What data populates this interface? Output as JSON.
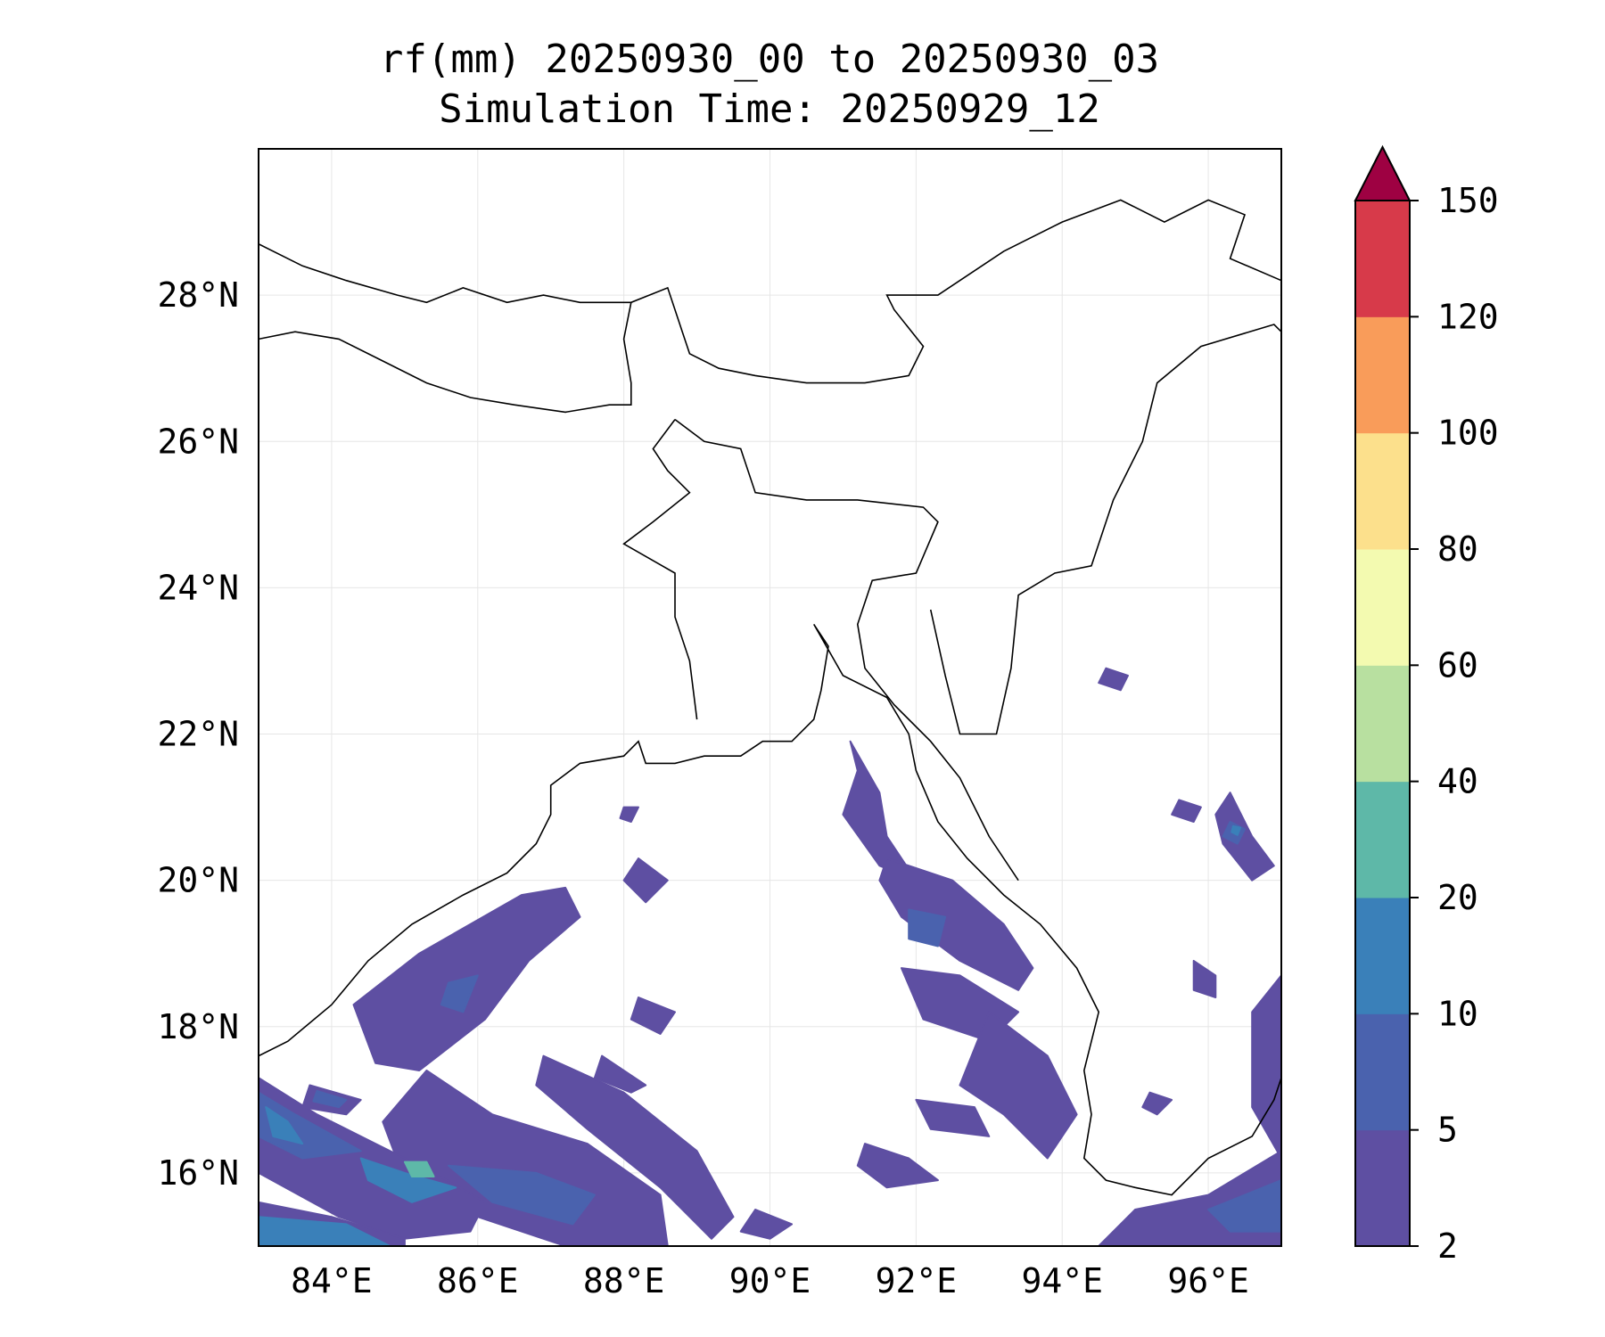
{
  "chart_data": {
    "type": "heatmap",
    "title_line1": "rf(mm) 20250930_00 to 20250930_03",
    "title_line2": "Simulation Time: 20250929_12",
    "xlabel": "",
    "ylabel": "",
    "xlim": [
      83,
      97
    ],
    "ylim": [
      15,
      30
    ],
    "grid": true,
    "x_ticks": [
      84,
      86,
      88,
      90,
      92,
      94,
      96
    ],
    "y_ticks": [
      16,
      18,
      20,
      22,
      24,
      26,
      28
    ],
    "x_tick_labels": [
      "84°E",
      "86°E",
      "88°E",
      "90°E",
      "92°E",
      "94°E",
      "96°E"
    ],
    "y_tick_labels": [
      "16°N",
      "18°N",
      "20°N",
      "22°N",
      "24°N",
      "26°N",
      "28°N"
    ],
    "colorbar": {
      "levels": [
        2,
        5,
        10,
        20,
        40,
        60,
        80,
        100,
        120,
        150
      ],
      "level_labels": [
        "2",
        "5",
        "10",
        "20",
        "40",
        "60",
        "80",
        "100",
        "120",
        "150"
      ],
      "colors": [
        "#5e4fa2",
        "#4a62ae",
        "#3a80b9",
        "#5eb8a8",
        "#b8e0a0",
        "#f3fab0",
        "#fce08c",
        "#f99c5a",
        "#d73a4a"
      ],
      "extend_color": "#9e0142",
      "extend": "max"
    },
    "rain_areas": [
      {
        "level": 1,
        "points": [
          [
            91.1,
            21.9
          ],
          [
            91.5,
            21.2
          ],
          [
            91.6,
            20.6
          ],
          [
            92.0,
            20.0
          ],
          [
            91.5,
            20.2
          ],
          [
            91.0,
            20.9
          ],
          [
            91.2,
            21.5
          ]
        ]
      },
      {
        "level": 1,
        "points": [
          [
            91.6,
            20.3
          ],
          [
            92.5,
            20.0
          ],
          [
            93.2,
            19.4
          ],
          [
            93.6,
            18.8
          ],
          [
            93.4,
            18.5
          ],
          [
            92.6,
            18.9
          ],
          [
            91.8,
            19.5
          ],
          [
            91.5,
            20.0
          ]
        ]
      },
      {
        "level": 1,
        "points": [
          [
            91.8,
            18.8
          ],
          [
            92.6,
            18.7
          ],
          [
            93.4,
            18.2
          ],
          [
            93.0,
            17.8
          ],
          [
            92.1,
            18.1
          ]
        ]
      },
      {
        "level": 2,
        "points": [
          [
            91.9,
            19.6
          ],
          [
            92.4,
            19.5
          ],
          [
            92.3,
            19.1
          ],
          [
            91.9,
            19.2
          ]
        ]
      },
      {
        "level": 1,
        "points": [
          [
            93.0,
            18.2
          ],
          [
            93.8,
            17.6
          ],
          [
            94.2,
            16.8
          ],
          [
            93.8,
            16.2
          ],
          [
            93.2,
            16.8
          ],
          [
            92.6,
            17.2
          ]
        ]
      },
      {
        "level": 1,
        "points": [
          [
            92.0,
            17.0
          ],
          [
            92.8,
            16.9
          ],
          [
            93.0,
            16.5
          ],
          [
            92.2,
            16.6
          ]
        ]
      },
      {
        "level": 1,
        "points": [
          [
            91.3,
            16.4
          ],
          [
            91.9,
            16.2
          ],
          [
            92.3,
            15.9
          ],
          [
            91.6,
            15.8
          ],
          [
            91.2,
            16.1
          ]
        ]
      },
      {
        "level": 1,
        "points": [
          [
            96.3,
            21.2
          ],
          [
            96.6,
            20.6
          ],
          [
            96.9,
            20.2
          ],
          [
            96.6,
            20.0
          ],
          [
            96.2,
            20.5
          ],
          [
            96.1,
            20.9
          ]
        ]
      },
      {
        "level": 2,
        "points": [
          [
            96.3,
            20.8
          ],
          [
            96.5,
            20.7
          ],
          [
            96.4,
            20.5
          ],
          [
            96.2,
            20.6
          ]
        ]
      },
      {
        "level": 3,
        "points": [
          [
            96.34,
            20.74
          ],
          [
            96.44,
            20.72
          ],
          [
            96.4,
            20.62
          ],
          [
            96.32,
            20.66
          ]
        ]
      },
      {
        "level": 1,
        "points": [
          [
            95.6,
            21.1
          ],
          [
            95.9,
            21.0
          ],
          [
            95.8,
            20.8
          ],
          [
            95.5,
            20.9
          ]
        ]
      },
      {
        "level": 1,
        "points": [
          [
            94.6,
            22.9
          ],
          [
            94.9,
            22.8
          ],
          [
            94.8,
            22.6
          ],
          [
            94.5,
            22.7
          ]
        ]
      },
      {
        "level": 1,
        "points": [
          [
            96.6,
            18.2
          ],
          [
            97.0,
            18.7
          ],
          [
            97.0,
            16.2
          ],
          [
            96.6,
            16.9
          ]
        ]
      },
      {
        "level": 1,
        "points": [
          [
            95.8,
            18.9
          ],
          [
            96.1,
            18.7
          ],
          [
            96.1,
            18.4
          ],
          [
            95.8,
            18.5
          ]
        ]
      },
      {
        "level": 1,
        "points": [
          [
            95.2,
            17.1
          ],
          [
            95.5,
            17.0
          ],
          [
            95.3,
            16.8
          ],
          [
            95.1,
            16.9
          ]
        ]
      },
      {
        "level": 1,
        "points": [
          [
            95.0,
            15.5
          ],
          [
            96.0,
            15.7
          ],
          [
            97.0,
            16.3
          ],
          [
            97.0,
            15.0
          ],
          [
            94.5,
            15.0
          ]
        ]
      },
      {
        "level": 2,
        "points": [
          [
            96.0,
            15.5
          ],
          [
            97.0,
            15.9
          ],
          [
            97.0,
            15.2
          ],
          [
            96.3,
            15.2
          ]
        ]
      },
      {
        "level": 1,
        "points": [
          [
            84.3,
            18.3
          ],
          [
            85.2,
            19.0
          ],
          [
            86.6,
            19.8
          ],
          [
            87.2,
            19.9
          ],
          [
            87.4,
            19.5
          ],
          [
            86.7,
            18.9
          ],
          [
            86.1,
            18.1
          ],
          [
            85.2,
            17.4
          ],
          [
            84.6,
            17.5
          ]
        ]
      },
      {
        "level": 2,
        "points": [
          [
            85.6,
            18.6
          ],
          [
            86.0,
            18.7
          ],
          [
            85.8,
            18.2
          ],
          [
            85.5,
            18.3
          ]
        ]
      },
      {
        "level": 1,
        "points": [
          [
            85.3,
            17.4
          ],
          [
            86.2,
            16.8
          ],
          [
            87.5,
            16.4
          ],
          [
            88.5,
            15.7
          ],
          [
            88.6,
            15.0
          ],
          [
            87.2,
            15.0
          ],
          [
            86.0,
            15.4
          ],
          [
            85.0,
            15.9
          ],
          [
            84.7,
            16.7
          ]
        ]
      },
      {
        "level": 2,
        "points": [
          [
            85.6,
            16.1
          ],
          [
            86.8,
            16.0
          ],
          [
            87.6,
            15.7
          ],
          [
            87.3,
            15.3
          ],
          [
            86.2,
            15.6
          ]
        ]
      },
      {
        "level": 1,
        "points": [
          [
            86.9,
            17.6
          ],
          [
            88.0,
            17.1
          ],
          [
            89.0,
            16.3
          ],
          [
            89.5,
            15.4
          ],
          [
            89.2,
            15.1
          ],
          [
            88.5,
            15.8
          ],
          [
            87.5,
            16.6
          ],
          [
            86.8,
            17.2
          ]
        ]
      },
      {
        "level": 1,
        "points": [
          [
            87.7,
            17.6
          ],
          [
            88.3,
            17.2
          ],
          [
            88.1,
            17.1
          ],
          [
            87.6,
            17.3
          ]
        ]
      },
      {
        "level": 1,
        "points": [
          [
            83.0,
            17.3
          ],
          [
            83.8,
            16.8
          ],
          [
            84.6,
            16.4
          ],
          [
            85.4,
            16.0
          ],
          [
            86.1,
            15.6
          ],
          [
            85.9,
            15.2
          ],
          [
            85.0,
            15.1
          ],
          [
            84.1,
            15.4
          ],
          [
            83.0,
            16.0
          ]
        ]
      },
      {
        "level": 2,
        "points": [
          [
            83.0,
            17.1
          ],
          [
            83.5,
            16.8
          ],
          [
            84.4,
            16.3
          ],
          [
            83.6,
            16.2
          ],
          [
            83.0,
            16.5
          ]
        ]
      },
      {
        "level": 3,
        "points": [
          [
            83.1,
            16.9
          ],
          [
            83.4,
            16.7
          ],
          [
            83.6,
            16.4
          ],
          [
            83.2,
            16.5
          ]
        ]
      },
      {
        "level": 3,
        "points": [
          [
            84.4,
            16.2
          ],
          [
            85.0,
            16.0
          ],
          [
            85.7,
            15.8
          ],
          [
            85.1,
            15.6
          ],
          [
            84.5,
            15.9
          ]
        ]
      },
      {
        "level": 4,
        "points": [
          [
            85.0,
            16.15
          ],
          [
            85.3,
            16.15
          ],
          [
            85.4,
            15.95
          ],
          [
            85.1,
            15.95
          ]
        ]
      },
      {
        "level": 1,
        "points": [
          [
            83.0,
            15.6
          ],
          [
            84.0,
            15.4
          ],
          [
            85.0,
            15.1
          ],
          [
            85.0,
            15.0
          ],
          [
            83.0,
            15.0
          ]
        ]
      },
      {
        "level": 3,
        "points": [
          [
            83.0,
            15.4
          ],
          [
            84.2,
            15.3
          ],
          [
            84.8,
            15.0
          ],
          [
            83.0,
            15.0
          ]
        ]
      },
      {
        "level": 1,
        "points": [
          [
            83.7,
            17.2
          ],
          [
            84.4,
            17.0
          ],
          [
            84.2,
            16.8
          ],
          [
            83.6,
            16.9
          ]
        ]
      },
      {
        "level": 2,
        "points": [
          [
            83.8,
            17.12
          ],
          [
            84.2,
            17.0
          ],
          [
            84.1,
            16.9
          ],
          [
            83.75,
            16.98
          ]
        ]
      },
      {
        "level": 1,
        "points": [
          [
            89.8,
            15.5
          ],
          [
            90.3,
            15.3
          ],
          [
            90.0,
            15.1
          ],
          [
            89.6,
            15.2
          ]
        ]
      },
      {
        "level": 1,
        "points": [
          [
            88.2,
            20.3
          ],
          [
            88.6,
            20.0
          ],
          [
            88.3,
            19.7
          ],
          [
            88.0,
            20.0
          ]
        ]
      },
      {
        "level": 1,
        "points": [
          [
            88.2,
            18.4
          ],
          [
            88.7,
            18.2
          ],
          [
            88.5,
            17.9
          ],
          [
            88.1,
            18.1
          ]
        ]
      },
      {
        "level": 1,
        "points": [
          [
            88.0,
            21.0
          ],
          [
            88.2,
            21.0
          ],
          [
            88.1,
            20.8
          ],
          [
            87.95,
            20.85
          ]
        ]
      }
    ]
  }
}
